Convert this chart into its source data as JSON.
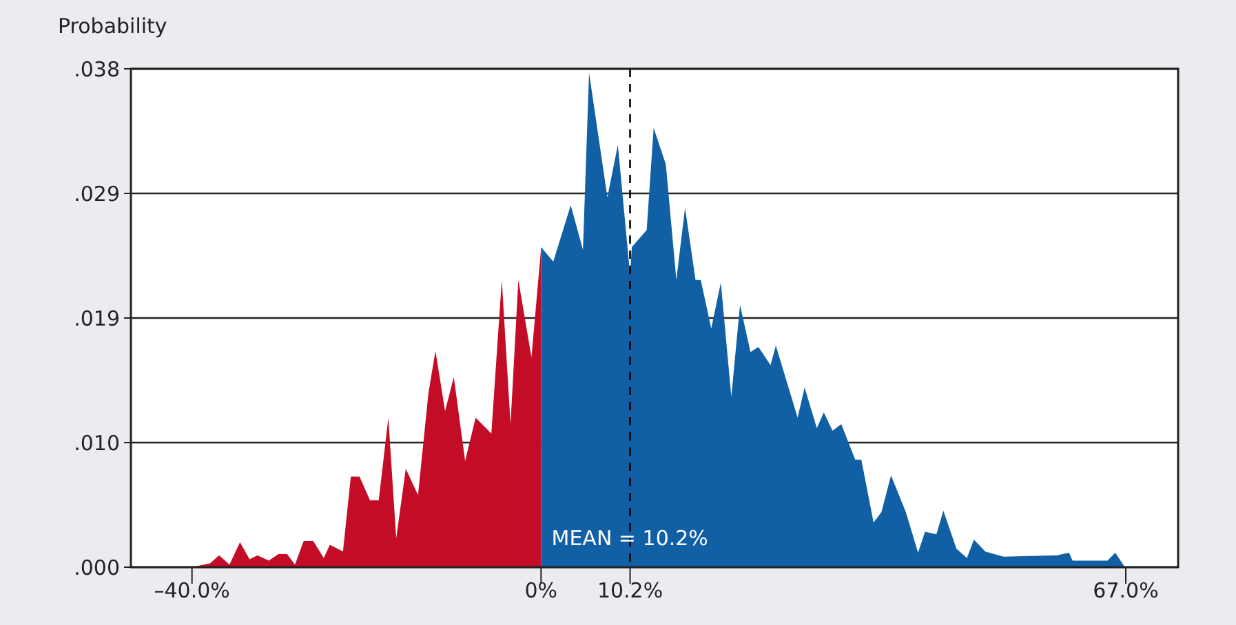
{
  "chart_data": {
    "type": "area",
    "ylabel": "Probability",
    "xlim": [
      -47,
      73
    ],
    "ylim": [
      0,
      0.038
    ],
    "xticks": [
      {
        "value": -40,
        "label": "–40.0%"
      },
      {
        "value": 0,
        "label": "0%"
      },
      {
        "value": 10.2,
        "label": "10.2%"
      },
      {
        "value": 67,
        "label": "67.0%"
      }
    ],
    "yticks": [
      {
        "value": 0,
        "label": ".000"
      },
      {
        "value": 0.0095,
        "label": ".010"
      },
      {
        "value": 0.019,
        "label": ".019"
      },
      {
        "value": 0.0285,
        "label": ".029"
      },
      {
        "value": 0.038,
        "label": ".038"
      }
    ],
    "grid": "y",
    "ref_lines": [
      {
        "axis": "x",
        "value": 10.2,
        "label": "MEAN = 10.2%",
        "color": "#000000",
        "line_style": "dashed"
      }
    ],
    "series": [
      {
        "color": "#c30d27",
        "x": [
          -40,
          -37.9,
          -36.9,
          -35.7,
          -34.5,
          -33.4,
          -32.5,
          -31.2,
          -30.1,
          -29.1,
          -28.2,
          -27.2,
          -26.1,
          -24.9,
          -24.2,
          -22.7,
          -21.8,
          -20.8,
          -19.6,
          -18.6,
          -17.5,
          -16.6,
          -15.5,
          -14.1,
          -12.9,
          -12.1,
          -11,
          -10,
          -8.7,
          -7.5,
          -5.7,
          -4.5,
          -3.5,
          -2.6,
          -1.1,
          0
        ],
        "values": [
          0,
          0.0003,
          0.0009,
          0.0002,
          0.0019,
          0.0006,
          0.0009,
          0.0005,
          0.001,
          0.001,
          0.0002,
          0.002,
          0.002,
          0.0007,
          0.0017,
          0.0012,
          0.0069,
          0.0069,
          0.0051,
          0.0051,
          0.0114,
          0.0022,
          0.0075,
          0.0055,
          0.0133,
          0.0165,
          0.0119,
          0.0145,
          0.0081,
          0.0114,
          0.0102,
          0.0219,
          0.0109,
          0.0219,
          0.016,
          0.0243
        ]
      },
      {
        "color": "#115fa5",
        "x": [
          0,
          1.4,
          3.4,
          4.8,
          5.5,
          7.6,
          8.8,
          10.2,
          10.4,
          12.1,
          12.9,
          14.3,
          15.5,
          16.5,
          17.7,
          18.3,
          19.5,
          20.6,
          21.8,
          22.8,
          24,
          24.9,
          26.3,
          26.9,
          29.4,
          30.2,
          31.6,
          32.4,
          33.4,
          34.4,
          36,
          36.7,
          38.1,
          39,
          40.1,
          41.8,
          43.2,
          44,
          45.3,
          46.1,
          47.6,
          48.8,
          49.6,
          50.9,
          53,
          59.1,
          60.5,
          60.9,
          64.9,
          65.8,
          66.9
        ],
        "values": [
          0.0244,
          0.0233,
          0.0276,
          0.0242,
          0.0377,
          0.0282,
          0.0322,
          0.0223,
          0.0244,
          0.0257,
          0.0335,
          0.0307,
          0.0219,
          0.0274,
          0.0219,
          0.0219,
          0.0182,
          0.0217,
          0.013,
          0.02,
          0.0164,
          0.0168,
          0.0154,
          0.0169,
          0.0114,
          0.0137,
          0.0106,
          0.0118,
          0.0104,
          0.0109,
          0.0082,
          0.0082,
          0.0034,
          0.0042,
          0.007,
          0.0042,
          0.0011,
          0.0027,
          0.0025,
          0.0043,
          0.0014,
          0.0007,
          0.0021,
          0.0012,
          0.0008,
          0.0009,
          0.0011,
          0.0005,
          0.0005,
          0.0011,
          0
        ]
      }
    ]
  }
}
